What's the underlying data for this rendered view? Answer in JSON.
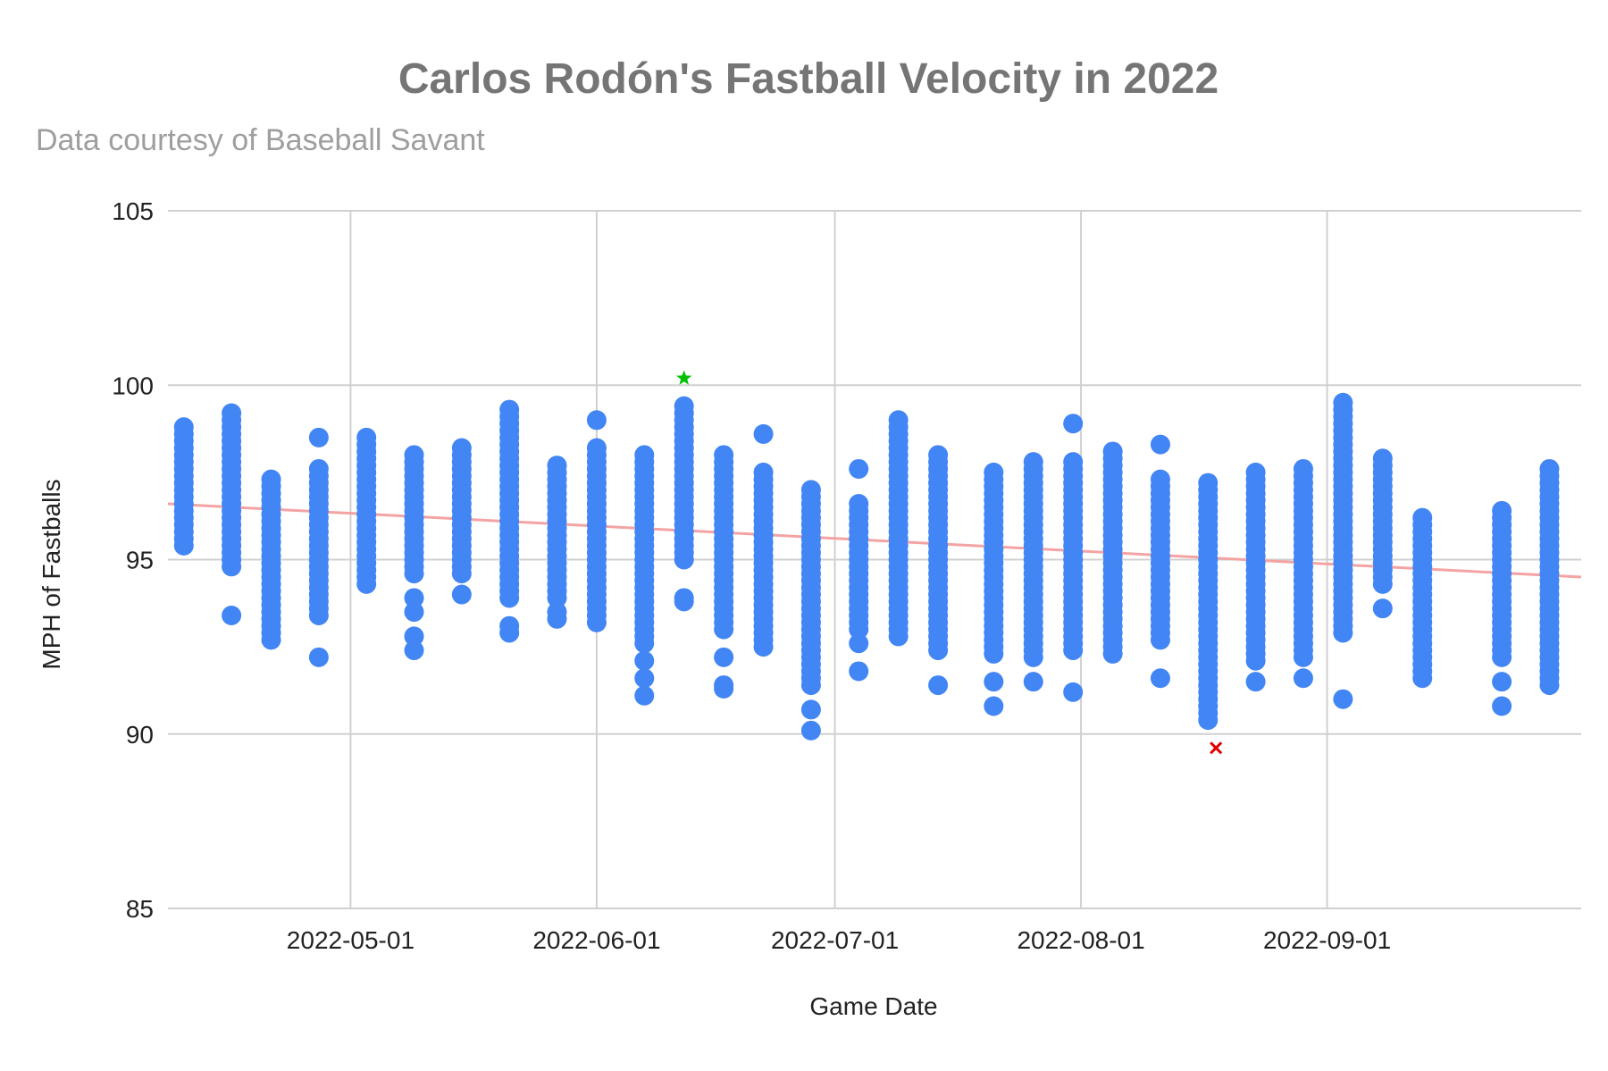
{
  "chart_data": {
    "type": "scatter",
    "title": "Carlos Rodón's Fastball Velocity in 2022",
    "subtitle": "Data courtesy of Baseball Savant",
    "xlabel": "Game Date",
    "ylabel": "MPH of Fastballs",
    "xlim": [
      "2022-04-08",
      "2022-10-03"
    ],
    "ylim": [
      85,
      105
    ],
    "x_ticks": [
      "2022-05-01",
      "2022-06-01",
      "2022-07-01",
      "2022-08-01",
      "2022-09-01"
    ],
    "y_ticks": [
      85,
      90,
      95,
      100,
      105
    ],
    "grid": true,
    "point_color": "#4285f4",
    "trendline": {
      "color": "#f4a3a3",
      "start": {
        "x": "2022-04-08",
        "y": 96.6
      },
      "end": {
        "x": "2022-10-03",
        "y": 94.5
      }
    },
    "highlights": [
      {
        "label": "max",
        "marker": "star",
        "color": "#00c000",
        "x": "2022-06-12",
        "y": 100.2
      },
      {
        "label": "min",
        "marker": "x",
        "color": "#e00000",
        "x": "2022-08-18",
        "y": 89.6
      }
    ],
    "games": [
      {
        "date": "2022-04-10",
        "min": 95.4,
        "max": 98.8,
        "extras": []
      },
      {
        "date": "2022-04-16",
        "min": 94.8,
        "max": 99.3,
        "extras": [
          93.4
        ]
      },
      {
        "date": "2022-04-21",
        "min": 92.7,
        "max": 97.4,
        "extras": []
      },
      {
        "date": "2022-04-27",
        "min": 93.4,
        "max": 97.7,
        "extras": [
          92.2,
          98.5
        ]
      },
      {
        "date": "2022-05-03",
        "min": 94.3,
        "max": 98.5,
        "extras": []
      },
      {
        "date": "2022-05-09",
        "min": 94.6,
        "max": 98.1,
        "extras": [
          93.9,
          93.5,
          92.8,
          92.4
        ]
      },
      {
        "date": "2022-05-15",
        "min": 94.6,
        "max": 98.2,
        "extras": [
          94.0
        ]
      },
      {
        "date": "2022-05-21",
        "min": 93.9,
        "max": 99.4,
        "extras": [
          93.1,
          92.9
        ]
      },
      {
        "date": "2022-05-27",
        "min": 93.9,
        "max": 97.8,
        "extras": [
          93.5,
          93.3
        ]
      },
      {
        "date": "2022-06-01",
        "min": 93.2,
        "max": 98.2,
        "extras": [
          99.0
        ]
      },
      {
        "date": "2022-06-07",
        "min": 92.6,
        "max": 98.1,
        "extras": [
          92.1,
          91.6,
          91.1
        ]
      },
      {
        "date": "2022-06-12",
        "min": 95.0,
        "max": 99.5,
        "extras": [
          93.9,
          93.8
        ]
      },
      {
        "date": "2022-06-17",
        "min": 93.0,
        "max": 98.0,
        "extras": [
          92.2,
          91.4,
          91.3
        ]
      },
      {
        "date": "2022-06-22",
        "min": 92.5,
        "max": 97.6,
        "extras": [
          98.6
        ]
      },
      {
        "date": "2022-06-28",
        "min": 91.4,
        "max": 97.1,
        "extras": [
          90.7,
          90.1
        ]
      },
      {
        "date": "2022-07-04",
        "min": 93.0,
        "max": 96.7,
        "extras": [
          92.6,
          91.8,
          97.6
        ]
      },
      {
        "date": "2022-07-09",
        "min": 92.8,
        "max": 99.1,
        "extras": []
      },
      {
        "date": "2022-07-14",
        "min": 92.4,
        "max": 98.1,
        "extras": [
          91.4
        ]
      },
      {
        "date": "2022-07-21",
        "min": 92.3,
        "max": 97.5,
        "extras": [
          91.5,
          90.8
        ]
      },
      {
        "date": "2022-07-26",
        "min": 92.2,
        "max": 97.9,
        "extras": [
          91.5
        ]
      },
      {
        "date": "2022-07-31",
        "min": 92.4,
        "max": 97.9,
        "extras": [
          91.2,
          98.9
        ]
      },
      {
        "date": "2022-08-05",
        "min": 92.3,
        "max": 98.2,
        "extras": []
      },
      {
        "date": "2022-08-11",
        "min": 92.7,
        "max": 97.3,
        "extras": [
          91.6,
          98.3
        ]
      },
      {
        "date": "2022-08-17",
        "min": 90.4,
        "max": 97.3,
        "extras": []
      },
      {
        "date": "2022-08-23",
        "min": 92.1,
        "max": 97.5,
        "extras": [
          91.5
        ]
      },
      {
        "date": "2022-08-29",
        "min": 92.2,
        "max": 97.6,
        "extras": [
          91.6
        ]
      },
      {
        "date": "2022-09-03",
        "min": 92.9,
        "max": 99.5,
        "extras": [
          91.0
        ]
      },
      {
        "date": "2022-09-08",
        "min": 94.3,
        "max": 97.9,
        "extras": [
          93.6
        ]
      },
      {
        "date": "2022-09-13",
        "min": 91.6,
        "max": 96.2,
        "extras": []
      },
      {
        "date": "2022-09-23",
        "min": 92.2,
        "max": 96.4,
        "extras": [
          91.5,
          90.8
        ]
      },
      {
        "date": "2022-09-29",
        "min": 91.4,
        "max": 97.7,
        "extras": []
      }
    ]
  }
}
